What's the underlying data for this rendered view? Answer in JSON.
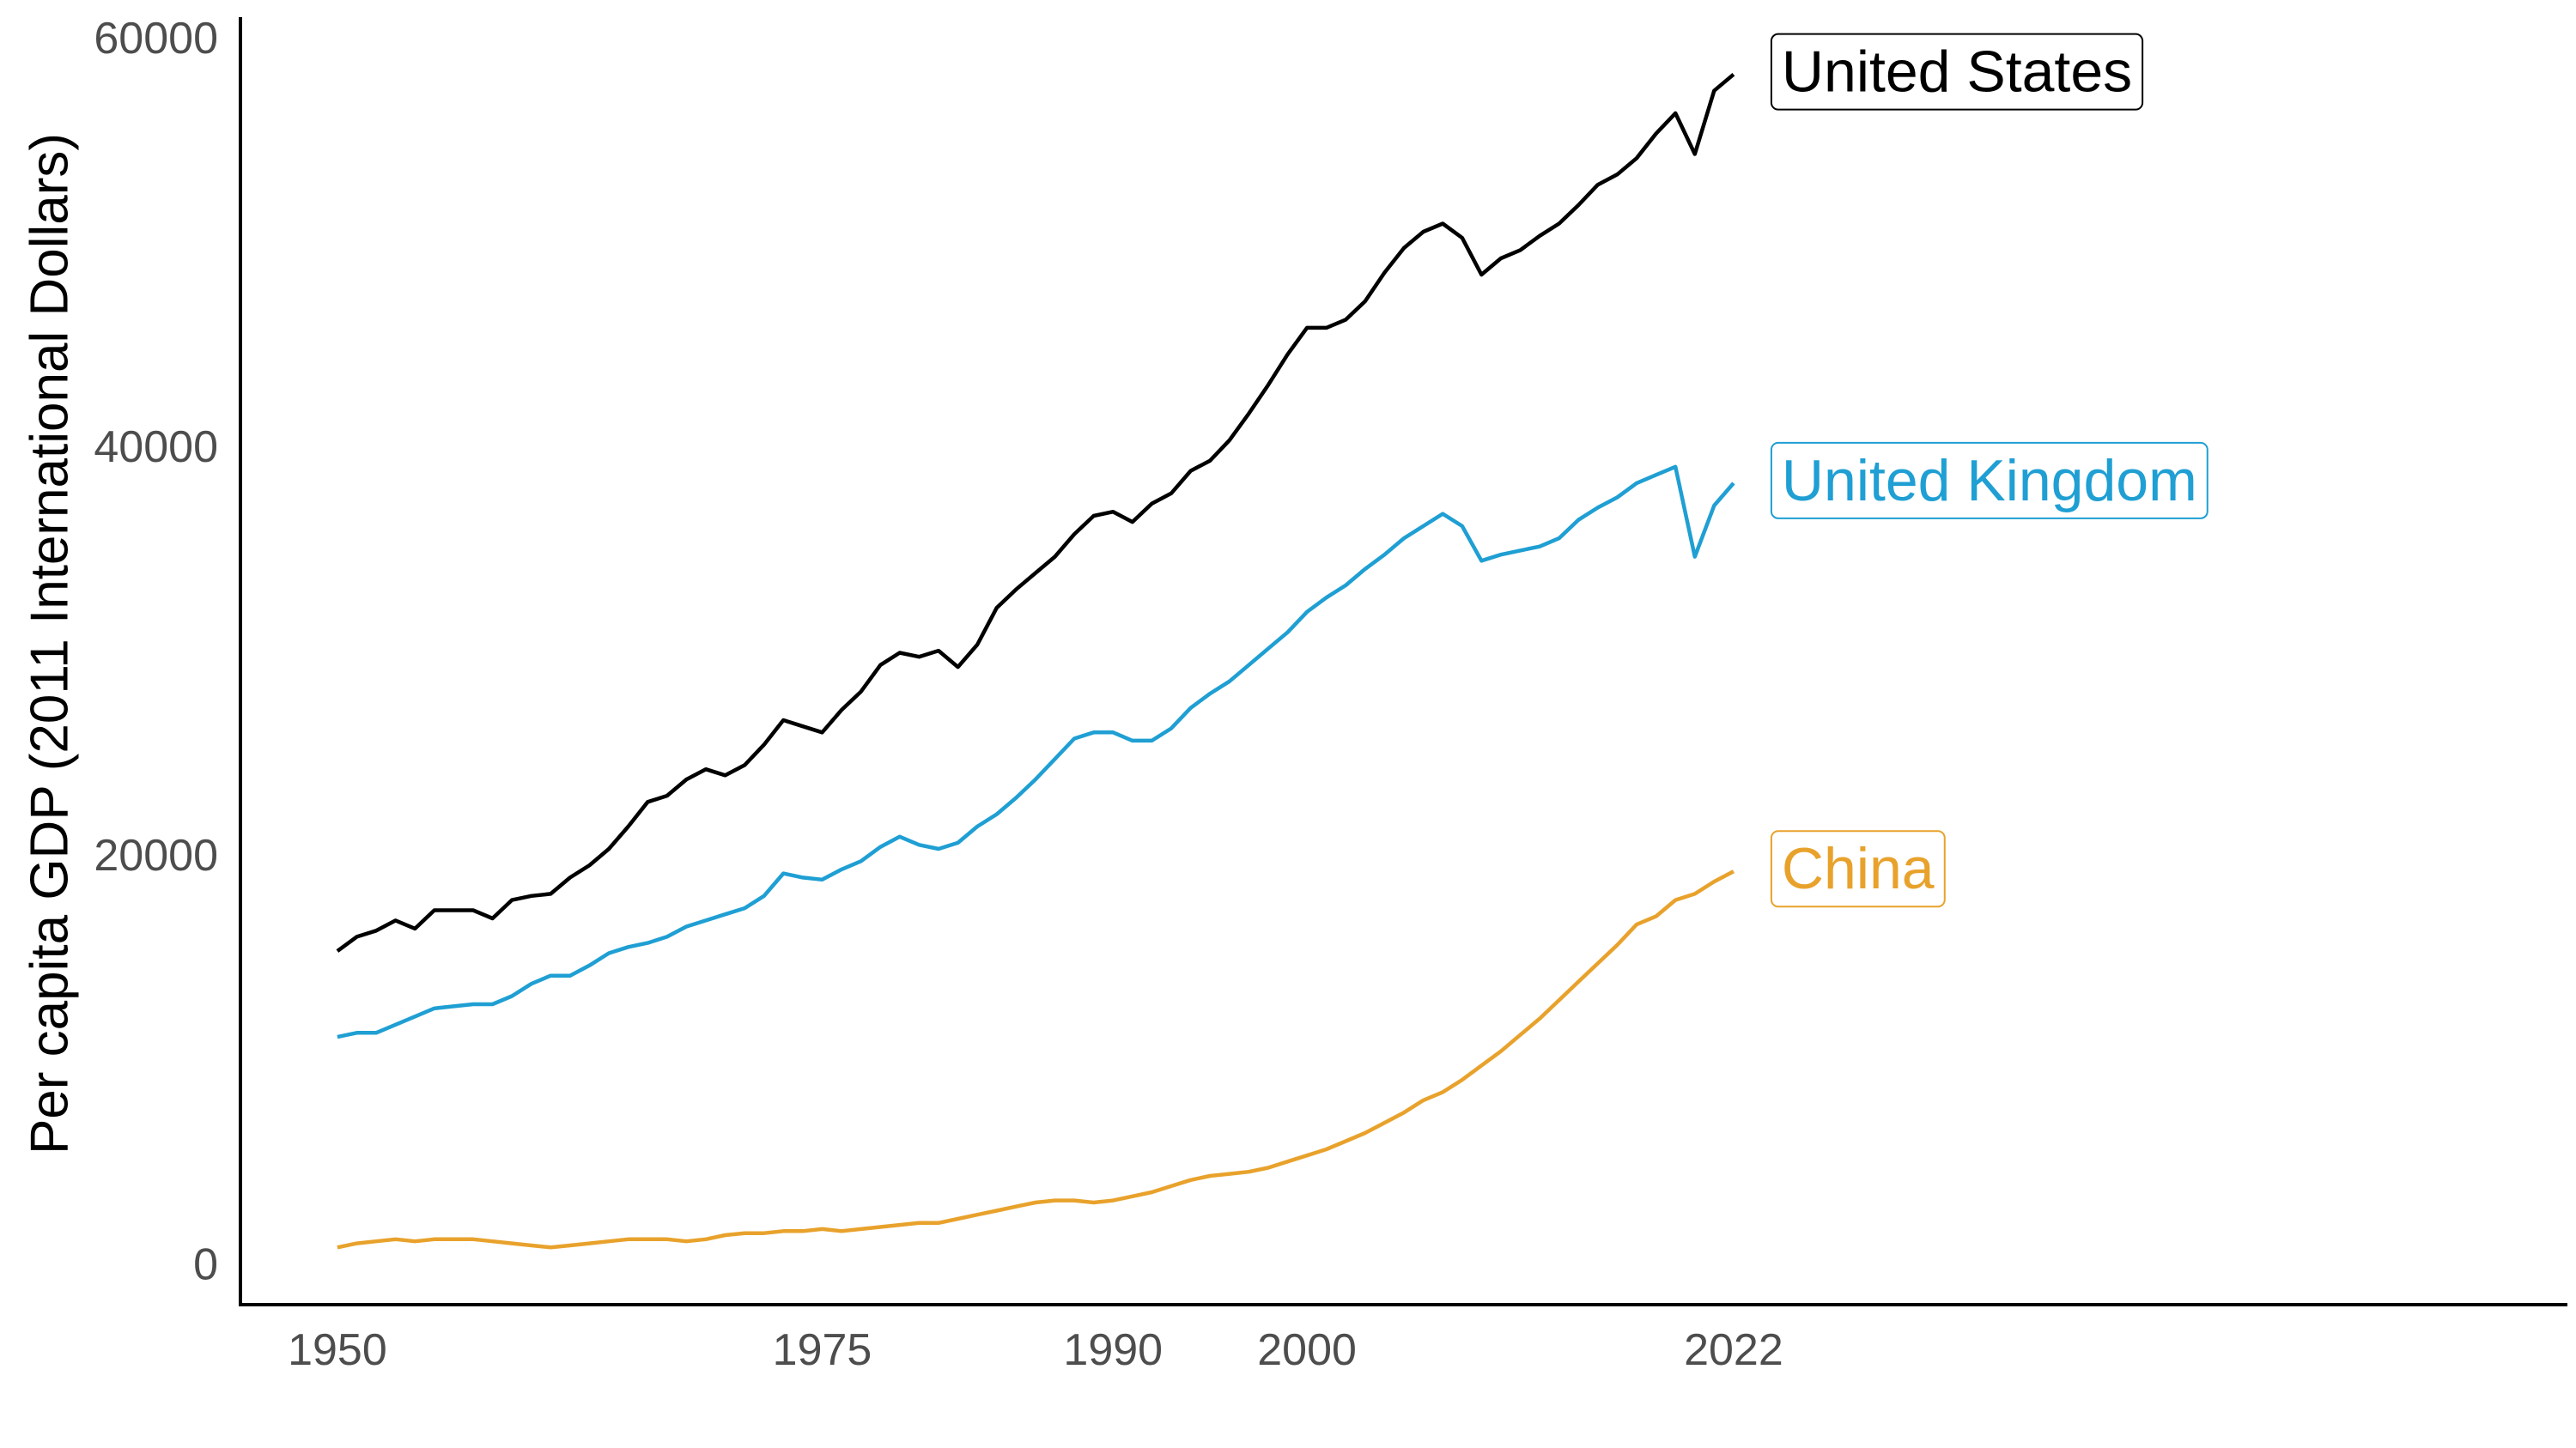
{
  "chart_data": {
    "type": "line",
    "title": "",
    "xlabel": "",
    "ylabel": "Per capita GDP (2011 International Dollars)",
    "xlim": [
      1945,
      2065
    ],
    "ylim": [
      -2000,
      61000
    ],
    "x_ticks": [
      1950,
      1975,
      1990,
      2000,
      2022
    ],
    "y_ticks": [
      0,
      20000,
      40000,
      60000
    ],
    "grid": false,
    "legend": "none (direct labels at line ends)",
    "x": [
      1950,
      1951,
      1952,
      1953,
      1954,
      1955,
      1956,
      1957,
      1958,
      1959,
      1960,
      1961,
      1962,
      1963,
      1964,
      1965,
      1966,
      1967,
      1968,
      1969,
      1970,
      1971,
      1972,
      1973,
      1974,
      1975,
      1976,
      1977,
      1978,
      1979,
      1980,
      1981,
      1982,
      1983,
      1984,
      1985,
      1986,
      1987,
      1988,
      1989,
      1990,
      1991,
      1992,
      1993,
      1994,
      1995,
      1996,
      1997,
      1998,
      1999,
      2000,
      2001,
      2002,
      2003,
      2004,
      2005,
      2006,
      2007,
      2008,
      2009,
      2010,
      2011,
      2012,
      2013,
      2014,
      2015,
      2016,
      2017,
      2018,
      2019,
      2020,
      2021,
      2022
    ],
    "series": [
      {
        "name": "United States",
        "color": "#000000",
        "values": [
          15300,
          16000,
          16300,
          16800,
          16400,
          17300,
          17300,
          17300,
          16900,
          17800,
          18000,
          18100,
          18900,
          19500,
          20300,
          21400,
          22600,
          22900,
          23700,
          24200,
          23900,
          24400,
          25400,
          26600,
          26300,
          26000,
          27100,
          28000,
          29300,
          29900,
          29700,
          30000,
          29200,
          30300,
          32100,
          33000,
          33800,
          34600,
          35700,
          36600,
          36800,
          36300,
          37200,
          37700,
          38800,
          39300,
          40300,
          41600,
          43000,
          44500,
          45800,
          45800,
          46200,
          47100,
          48500,
          49700,
          50500,
          50900,
          50200,
          48400,
          49200,
          49600,
          50300,
          50900,
          51800,
          52800,
          53300,
          54100,
          55300,
          56300,
          54300,
          57400,
          58200
        ]
      },
      {
        "name": "United Kingdom",
        "color": "#1f9fd3",
        "values": [
          11100,
          11300,
          11300,
          11700,
          12100,
          12500,
          12600,
          12700,
          12700,
          13100,
          13700,
          14100,
          14100,
          14600,
          15200,
          15500,
          15700,
          16000,
          16500,
          16800,
          17100,
          17400,
          18000,
          19100,
          18900,
          18800,
          19300,
          19700,
          20400,
          20900,
          20500,
          20300,
          20600,
          21400,
          22000,
          22800,
          23700,
          24700,
          25700,
          26000,
          26000,
          25600,
          25600,
          26200,
          27200,
          27900,
          28500,
          29300,
          30100,
          30900,
          31900,
          32600,
          33200,
          34000,
          34700,
          35500,
          36100,
          36700,
          36100,
          34400,
          34700,
          34900,
          35100,
          35500,
          36400,
          37000,
          37500,
          38200,
          38600,
          39000,
          34600,
          37100,
          38200
        ]
      },
      {
        "name": "China",
        "color": "#e8a22c",
        "values": [
          800,
          1000,
          1100,
          1200,
          1100,
          1200,
          1200,
          1200,
          1100,
          1000,
          900,
          800,
          900,
          1000,
          1100,
          1200,
          1200,
          1200,
          1100,
          1200,
          1400,
          1500,
          1500,
          1600,
          1600,
          1700,
          1600,
          1700,
          1800,
          1900,
          2000,
          2000,
          2200,
          2400,
          2600,
          2800,
          3000,
          3100,
          3100,
          3000,
          3100,
          3300,
          3500,
          3800,
          4100,
          4300,
          4400,
          4500,
          4700,
          5000,
          5300,
          5600,
          6000,
          6400,
          6900,
          7400,
          8000,
          8400,
          9000,
          9700,
          10400,
          11200,
          12000,
          12900,
          13800,
          14700,
          15600,
          16600,
          17000,
          17800,
          18100,
          18700,
          19200
        ]
      }
    ]
  }
}
